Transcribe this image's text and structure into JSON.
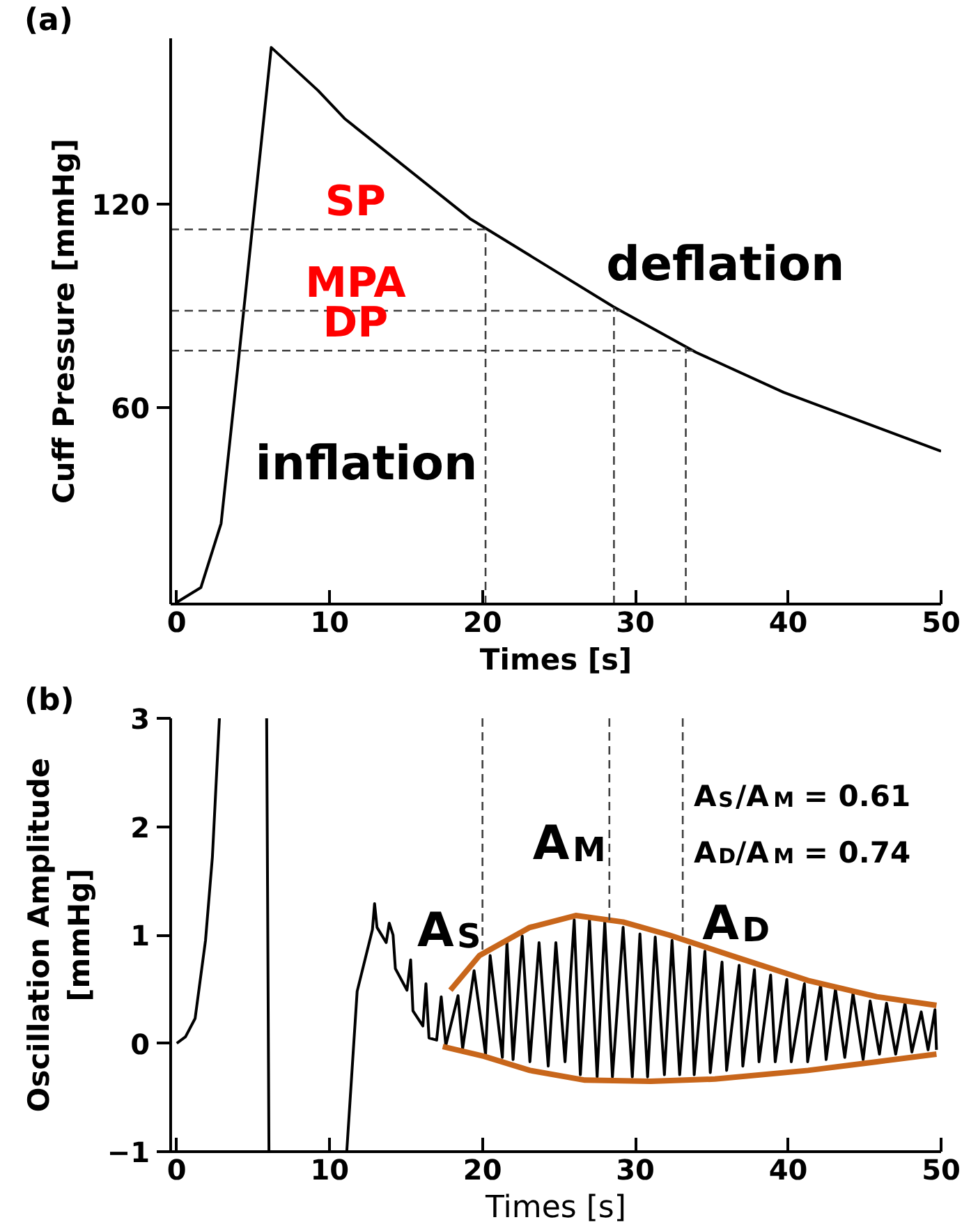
{
  "chart_data": [
    {
      "type": "line",
      "title": "(a)",
      "xlabel": "Times [s]",
      "ylabel": "Cuff Pressure [mmHg]",
      "xlim": [
        -0.4,
        50
      ],
      "ylim": [
        2,
        169
      ],
      "xticks": [
        0,
        10,
        20,
        30,
        40,
        50
      ],
      "yticks": [
        60,
        120
      ],
      "grid": false,
      "series": [
        {
          "color": "#000000",
          "x": [
            0,
            1.58,
            2.9,
            4.0,
            6.18,
            9.24,
            10.98,
            19.17,
            28.58,
            33.97,
            39.7,
            50.0
          ],
          "values": [
            2.5,
            6.9,
            25.8,
            72.3,
            166.3,
            153.6,
            145.3,
            115.8,
            89.7,
            76.3,
            64.5,
            47.1
          ]
        }
      ],
      "ref_lines": [
        {
          "axis": "y",
          "value": 112.6,
          "label": "SP",
          "color": "#404040",
          "line_style": "dashed"
        },
        {
          "axis": "y",
          "value": 88.6,
          "label": "MPA",
          "color": "#404040",
          "line_style": "dashed"
        },
        {
          "axis": "y",
          "value": 76.8,
          "label": "DP",
          "color": "#404040",
          "line_style": "dashed"
        },
        {
          "axis": "x",
          "value": 20.2,
          "color": "#404040",
          "line_style": "dashed"
        },
        {
          "axis": "x",
          "value": 28.6,
          "color": "#404040",
          "line_style": "dashed"
        },
        {
          "axis": "x",
          "value": 33.3,
          "color": "#404040",
          "line_style": "dashed"
        }
      ],
      "annotations": [
        "deflation",
        "inflation"
      ]
    },
    {
      "type": "line",
      "title": "(b)",
      "xlabel": "Times [s]",
      "ylabel": "Oscillation Amplitude\n[mmHg]",
      "xlim": [
        -0.4,
        50
      ],
      "ylim": [
        -1,
        3
      ],
      "xticks": [
        0,
        10,
        20,
        30,
        40,
        50
      ],
      "yticks": [
        -1,
        0,
        1,
        2,
        3
      ],
      "grid": false,
      "series": [
        {
          "color": "#000000",
          "x": [
            0,
            0.57,
            1.2,
            1.88,
            2.33,
            2.79,
            4.3,
            5.88,
            6.03,
            8.5,
            11.12,
            11.8,
            12.8,
            12.94,
            13.1,
            13.7,
            13.9,
            14.15,
            14.3,
            15.06,
            15.3,
            15.45,
            16.1,
            16.3,
            16.5,
            17.0,
            17.3,
            17.6,
            18.4,
            18.7,
            19.45,
            20.2,
            20.5,
            21.3,
            21.6,
            22.0,
            22.6,
            23.1,
            23.7,
            24.3,
            24.8,
            25.4,
            26.0,
            26.4,
            27.0,
            27.5,
            28.0,
            28.5,
            29.2,
            29.8,
            30.3,
            30.8,
            31.3,
            31.9,
            32.4,
            32.9,
            33.55,
            33.85,
            34.55,
            34.9,
            35.67,
            35.97,
            36.79,
            37.03,
            37.79,
            38.09,
            38.85,
            39.15,
            39.91,
            40.2,
            41.06,
            41.27,
            42.12,
            42.48,
            43.09,
            43.7,
            44.24,
            44.9,
            45.36,
            45.97,
            46.43,
            47.03,
            47.64,
            48.09,
            48.7,
            49.15,
            49.6,
            49.7
          ],
          "values": [
            0,
            0.06,
            0.23,
            0.95,
            1.72,
            3,
            null,
            3,
            -1,
            null,
            -1,
            0.48,
            1.05,
            1.29,
            1.07,
            0.93,
            1.11,
            1.0,
            0.69,
            0.49,
            0.77,
            0.3,
            0.16,
            0.55,
            0.05,
            0.03,
            0.43,
            -0.02,
            0.44,
            -0.05,
            0.67,
            -0.1,
            0.81,
            -0.13,
            0.93,
            -0.15,
            0.99,
            -0.17,
            0.93,
            -0.21,
            0.93,
            -0.17,
            1.14,
            -0.29,
            1.14,
            -0.31,
            1.12,
            -0.31,
            1.07,
            -0.31,
            1.01,
            -0.31,
            0.98,
            -0.29,
            0.95,
            -0.29,
            0.89,
            -0.29,
            0.85,
            -0.27,
            0.75,
            -0.25,
            0.72,
            -0.21,
            0.68,
            -0.17,
            0.63,
            -0.17,
            0.59,
            -0.17,
            0.55,
            -0.17,
            0.54,
            -0.15,
            0.5,
            -0.13,
            0.46,
            -0.15,
            0.39,
            -0.1,
            0.37,
            -0.1,
            0.37,
            -0.08,
            0.29,
            -0.06,
            0.31,
            -0.06
          ]
        },
        {
          "color": "#c8661b",
          "x": [
            17.9,
            19.8,
            23.1,
            26.1,
            29.2,
            32.2,
            36.7,
            41.3,
            45.8,
            49.7
          ],
          "values": [
            0.49,
            0.81,
            1.07,
            1.18,
            1.12,
            1.0,
            0.79,
            0.58,
            0.43,
            0.35
          ]
        },
        {
          "color": "#c8661b",
          "x": [
            17.4,
            20.1,
            23.1,
            26.7,
            31.0,
            35.2,
            41.3,
            45.8,
            49.7
          ],
          "values": [
            -0.03,
            -0.12,
            -0.25,
            -0.34,
            -0.35,
            -0.33,
            -0.25,
            -0.17,
            -0.1
          ]
        }
      ],
      "ref_lines": [
        {
          "axis": "x",
          "value": 20.0,
          "color": "#404040",
          "line_style": "dashed"
        },
        {
          "axis": "x",
          "value": 28.3,
          "color": "#404040",
          "line_style": "dashed"
        },
        {
          "axis": "x",
          "value": 33.1,
          "color": "#404040",
          "line_style": "dashed"
        }
      ],
      "annotations": [
        "A$_{S}$",
        "A$_{M}$",
        "A$_{D}$",
        "A$_{S}$/A$_{M}$ = 0.61",
        "A$_{D}$/A$_{M}$ = 0.74"
      ]
    }
  ]
}
